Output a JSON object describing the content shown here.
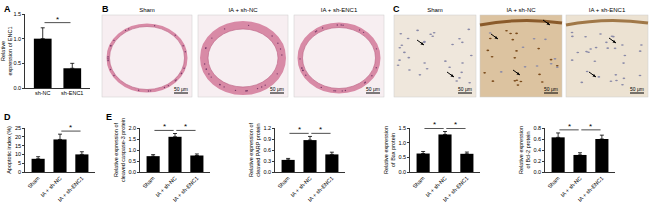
{
  "panel_labels": [
    "A",
    "B",
    "C",
    "D",
    "E"
  ],
  "image_panels": [
    {
      "panel": "B",
      "images": [
        {
          "label": "Sham",
          "scale_bar": "50 μm"
        },
        {
          "label": "IA + sh-NC",
          "scale_bar": "50 μm"
        },
        {
          "label": "IA + sh-ENC1",
          "scale_bar": "50 μm"
        }
      ]
    },
    {
      "panel": "C",
      "images": [
        {
          "label": "Sham",
          "scale_bar": "50 μm"
        },
        {
          "label": "IA + sh-NC",
          "scale_bar": "50 μm"
        },
        {
          "label": "IA + sh-ENC1",
          "scale_bar": "50 μm"
        }
      ]
    }
  ],
  "chart_data": [
    {
      "panel": "A",
      "type": "bar",
      "ylabel": "Relative expression of ENC1",
      "categories": [
        "sh-NC",
        "sh-ENC1"
      ],
      "values": [
        1.0,
        0.4
      ],
      "errors": [
        0.22,
        0.1
      ],
      "color": "#000000",
      "ylim": [
        0,
        1.5
      ],
      "yticks": [
        {
          "value": 0,
          "label": "0.0"
        },
        {
          "value": 0.5,
          "label": "0.5"
        },
        {
          "value": 1,
          "label": "1.0"
        },
        {
          "value": 1.5,
          "label": "1.5"
        }
      ],
      "grid": false,
      "significance": [
        {
          "from": "sh-NC",
          "to": "sh-ENC1",
          "label": "*"
        }
      ]
    },
    {
      "panel": "D",
      "type": "bar",
      "ylabel": "Apoptotic index (%)",
      "categories": [
        "Sham",
        "IA + sh-NC",
        "IA + sh-ENC1"
      ],
      "values": [
        7.5,
        18.5,
        10
      ],
      "errors": [
        1.2,
        3,
        1.5
      ],
      "color": "#000000",
      "ylim": [
        0,
        25
      ],
      "yticks": [
        0,
        5,
        10,
        15,
        20,
        25
      ],
      "grid": false,
      "significance": [
        {
          "from": "IA + sh-NC",
          "to": "IA + sh-ENC1",
          "label": "*"
        }
      ]
    },
    {
      "panel": "E",
      "type": "bar",
      "ylabel": "Relative expression of cleaved caspase-3 protein",
      "categories": [
        "Sham",
        "IA + sh-NC",
        "IA + sh-ENC1"
      ],
      "values": [
        0.72,
        1.6,
        0.75
      ],
      "errors": [
        0.07,
        0.15,
        0.07
      ],
      "color": "#000000",
      "ylim": [
        0,
        2
      ],
      "yticks": [
        {
          "value": 0,
          "label": "0.0"
        },
        {
          "value": 0.5,
          "label": "0.5"
        },
        {
          "value": 1,
          "label": "1.0"
        },
        {
          "value": 1.5,
          "label": "1.5"
        },
        {
          "value": 2,
          "label": "2.0"
        }
      ],
      "grid": false,
      "significance": [
        {
          "from": "Sham",
          "to": "IA + sh-NC",
          "label": "*"
        },
        {
          "from": "IA + sh-NC",
          "to": "IA + sh-ENC1",
          "label": "*"
        }
      ]
    },
    {
      "type": "bar",
      "ylabel": "Relative expression of cleaved PARP protein",
      "categories": [
        "Sham",
        "IA + sh-NC",
        "IA + sh-ENC1"
      ],
      "values": [
        0.33,
        0.87,
        0.48
      ],
      "errors": [
        0.04,
        0.1,
        0.06
      ],
      "color": "#000000",
      "ylim": [
        0,
        1.2
      ],
      "yticks": [
        {
          "value": 0,
          "label": "0.0"
        },
        {
          "value": 0.3,
          "label": "0.3"
        },
        {
          "value": 0.6,
          "label": "0.6"
        },
        {
          "value": 0.9,
          "label": "0.9"
        },
        {
          "value": 1.2,
          "label": "1.2"
        }
      ],
      "grid": false,
      "significance": [
        {
          "from": "Sham",
          "to": "IA + sh-NC",
          "label": "*"
        },
        {
          "from": "IA + sh-NC",
          "to": "IA + sh-ENC1",
          "label": "*"
        }
      ]
    },
    {
      "type": "bar",
      "ylabel": "Relative expression of Bax protein",
      "categories": [
        "Sham",
        "IA + sh-NC",
        "IA + sh-ENC1"
      ],
      "values": [
        0.63,
        1.28,
        0.62
      ],
      "errors": [
        0.07,
        0.1,
        0.06
      ],
      "color": "#000000",
      "ylim": [
        0,
        1.5
      ],
      "yticks": [
        {
          "value": 0,
          "label": "0.0"
        },
        {
          "value": 0.5,
          "label": "0.5"
        },
        {
          "value": 1,
          "label": "1.0"
        },
        {
          "value": 1.5,
          "label": "1.5"
        }
      ],
      "grid": false,
      "significance": [
        {
          "from": "Sham",
          "to": "IA + sh-NC",
          "label": "*"
        },
        {
          "from": "IA + sh-NC",
          "to": "IA + sh-ENC1",
          "label": "*"
        }
      ]
    },
    {
      "type": "bar",
      "ylabel": "Relative expression of Bcl-2 protein",
      "categories": [
        "Sham",
        "IA + sh-NC",
        "IA + sh-ENC1"
      ],
      "values": [
        0.63,
        0.31,
        0.6
      ],
      "errors": [
        0.08,
        0.04,
        0.07
      ],
      "color": "#000000",
      "ylim": [
        0,
        0.8
      ],
      "yticks": [
        {
          "value": 0,
          "label": "0.0"
        },
        {
          "value": 0.2,
          "label": "0.2"
        },
        {
          "value": 0.4,
          "label": "0.4"
        },
        {
          "value": 0.6,
          "label": "0.6"
        },
        {
          "value": 0.8,
          "label": "0.8"
        }
      ],
      "grid": false,
      "significance": [
        {
          "from": "Sham",
          "to": "IA + sh-NC",
          "label": "*"
        },
        {
          "from": "IA + sh-NC",
          "to": "IA + sh-ENC1",
          "label": "*"
        }
      ]
    }
  ]
}
